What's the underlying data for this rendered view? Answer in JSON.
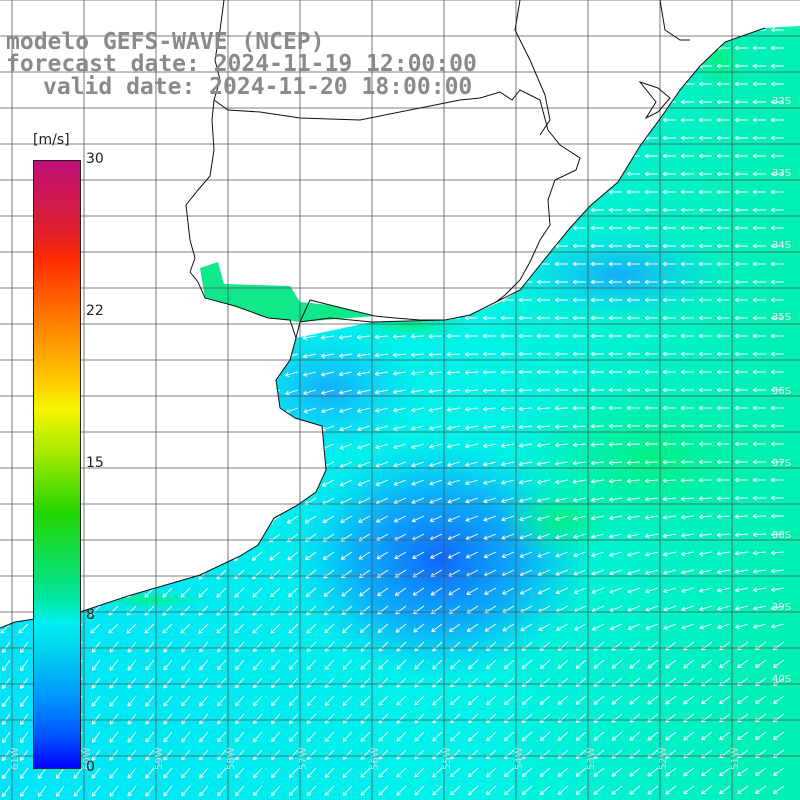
{
  "title": {
    "line1": "modelo GEFS-WAVE (NCEP)",
    "line2": "forecast date: 2024-11-19 12:00:00",
    "line3": "valid date: 2024-11-20 18:00:00"
  },
  "colorbar": {
    "unit": "[m/s]",
    "ticks": [
      "30",
      "22",
      "15",
      "8",
      "0"
    ]
  },
  "lat_labels": [
    "32S",
    "33S",
    "34S",
    "35S",
    "36S",
    "37S",
    "38S",
    "39S",
    "40S"
  ],
  "lon_labels": [
    "61W",
    "60W",
    "59W",
    "58W",
    "57W",
    "56W",
    "55W",
    "54W",
    "53W",
    "52W",
    "51W"
  ],
  "colors": {
    "land": "#ffffff",
    "coast": "#111111",
    "grid": "#555555",
    "arrows": "#ffffff",
    "title_text": "#8a8a8a"
  }
}
